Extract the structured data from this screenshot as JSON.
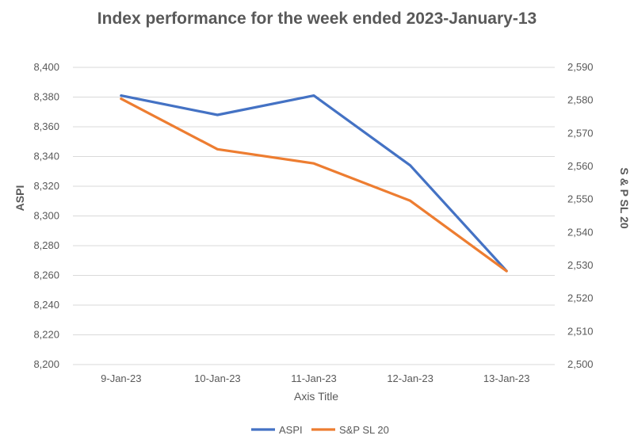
{
  "chart_data": {
    "type": "line",
    "title": "Index performance for the week ended 2023-January-13",
    "xlabel": "Axis Title",
    "ylabel": "ASPI",
    "y2label": "S & P SL 20",
    "categories": [
      "9-Jan-23",
      "10-Jan-23",
      "11-Jan-23",
      "12-Jan-23",
      "13-Jan-23"
    ],
    "ylim": [
      8200,
      8400
    ],
    "y2lim": [
      2500,
      2590
    ],
    "yticks": [
      "8,200",
      "8,220",
      "8,240",
      "8,260",
      "8,280",
      "8,300",
      "8,320",
      "8,340",
      "8,360",
      "8,380",
      "8,400"
    ],
    "y2ticks": [
      "2,500",
      "2,510",
      "2,520",
      "2,530",
      "2,540",
      "2,550",
      "2,560",
      "2,570",
      "2,580",
      "2,590"
    ],
    "grid": true,
    "legend": "bottom",
    "series": [
      {
        "name": "ASPI",
        "axis": "left",
        "color": "#4472C4",
        "values": [
          8381,
          8368,
          8381,
          8334,
          8263
        ]
      },
      {
        "name": "S&P SL 20",
        "axis": "right",
        "color": "#ED7D31",
        "values": [
          2580.5,
          2565.2,
          2560.9,
          2549.6,
          2528.3
        ]
      }
    ]
  }
}
